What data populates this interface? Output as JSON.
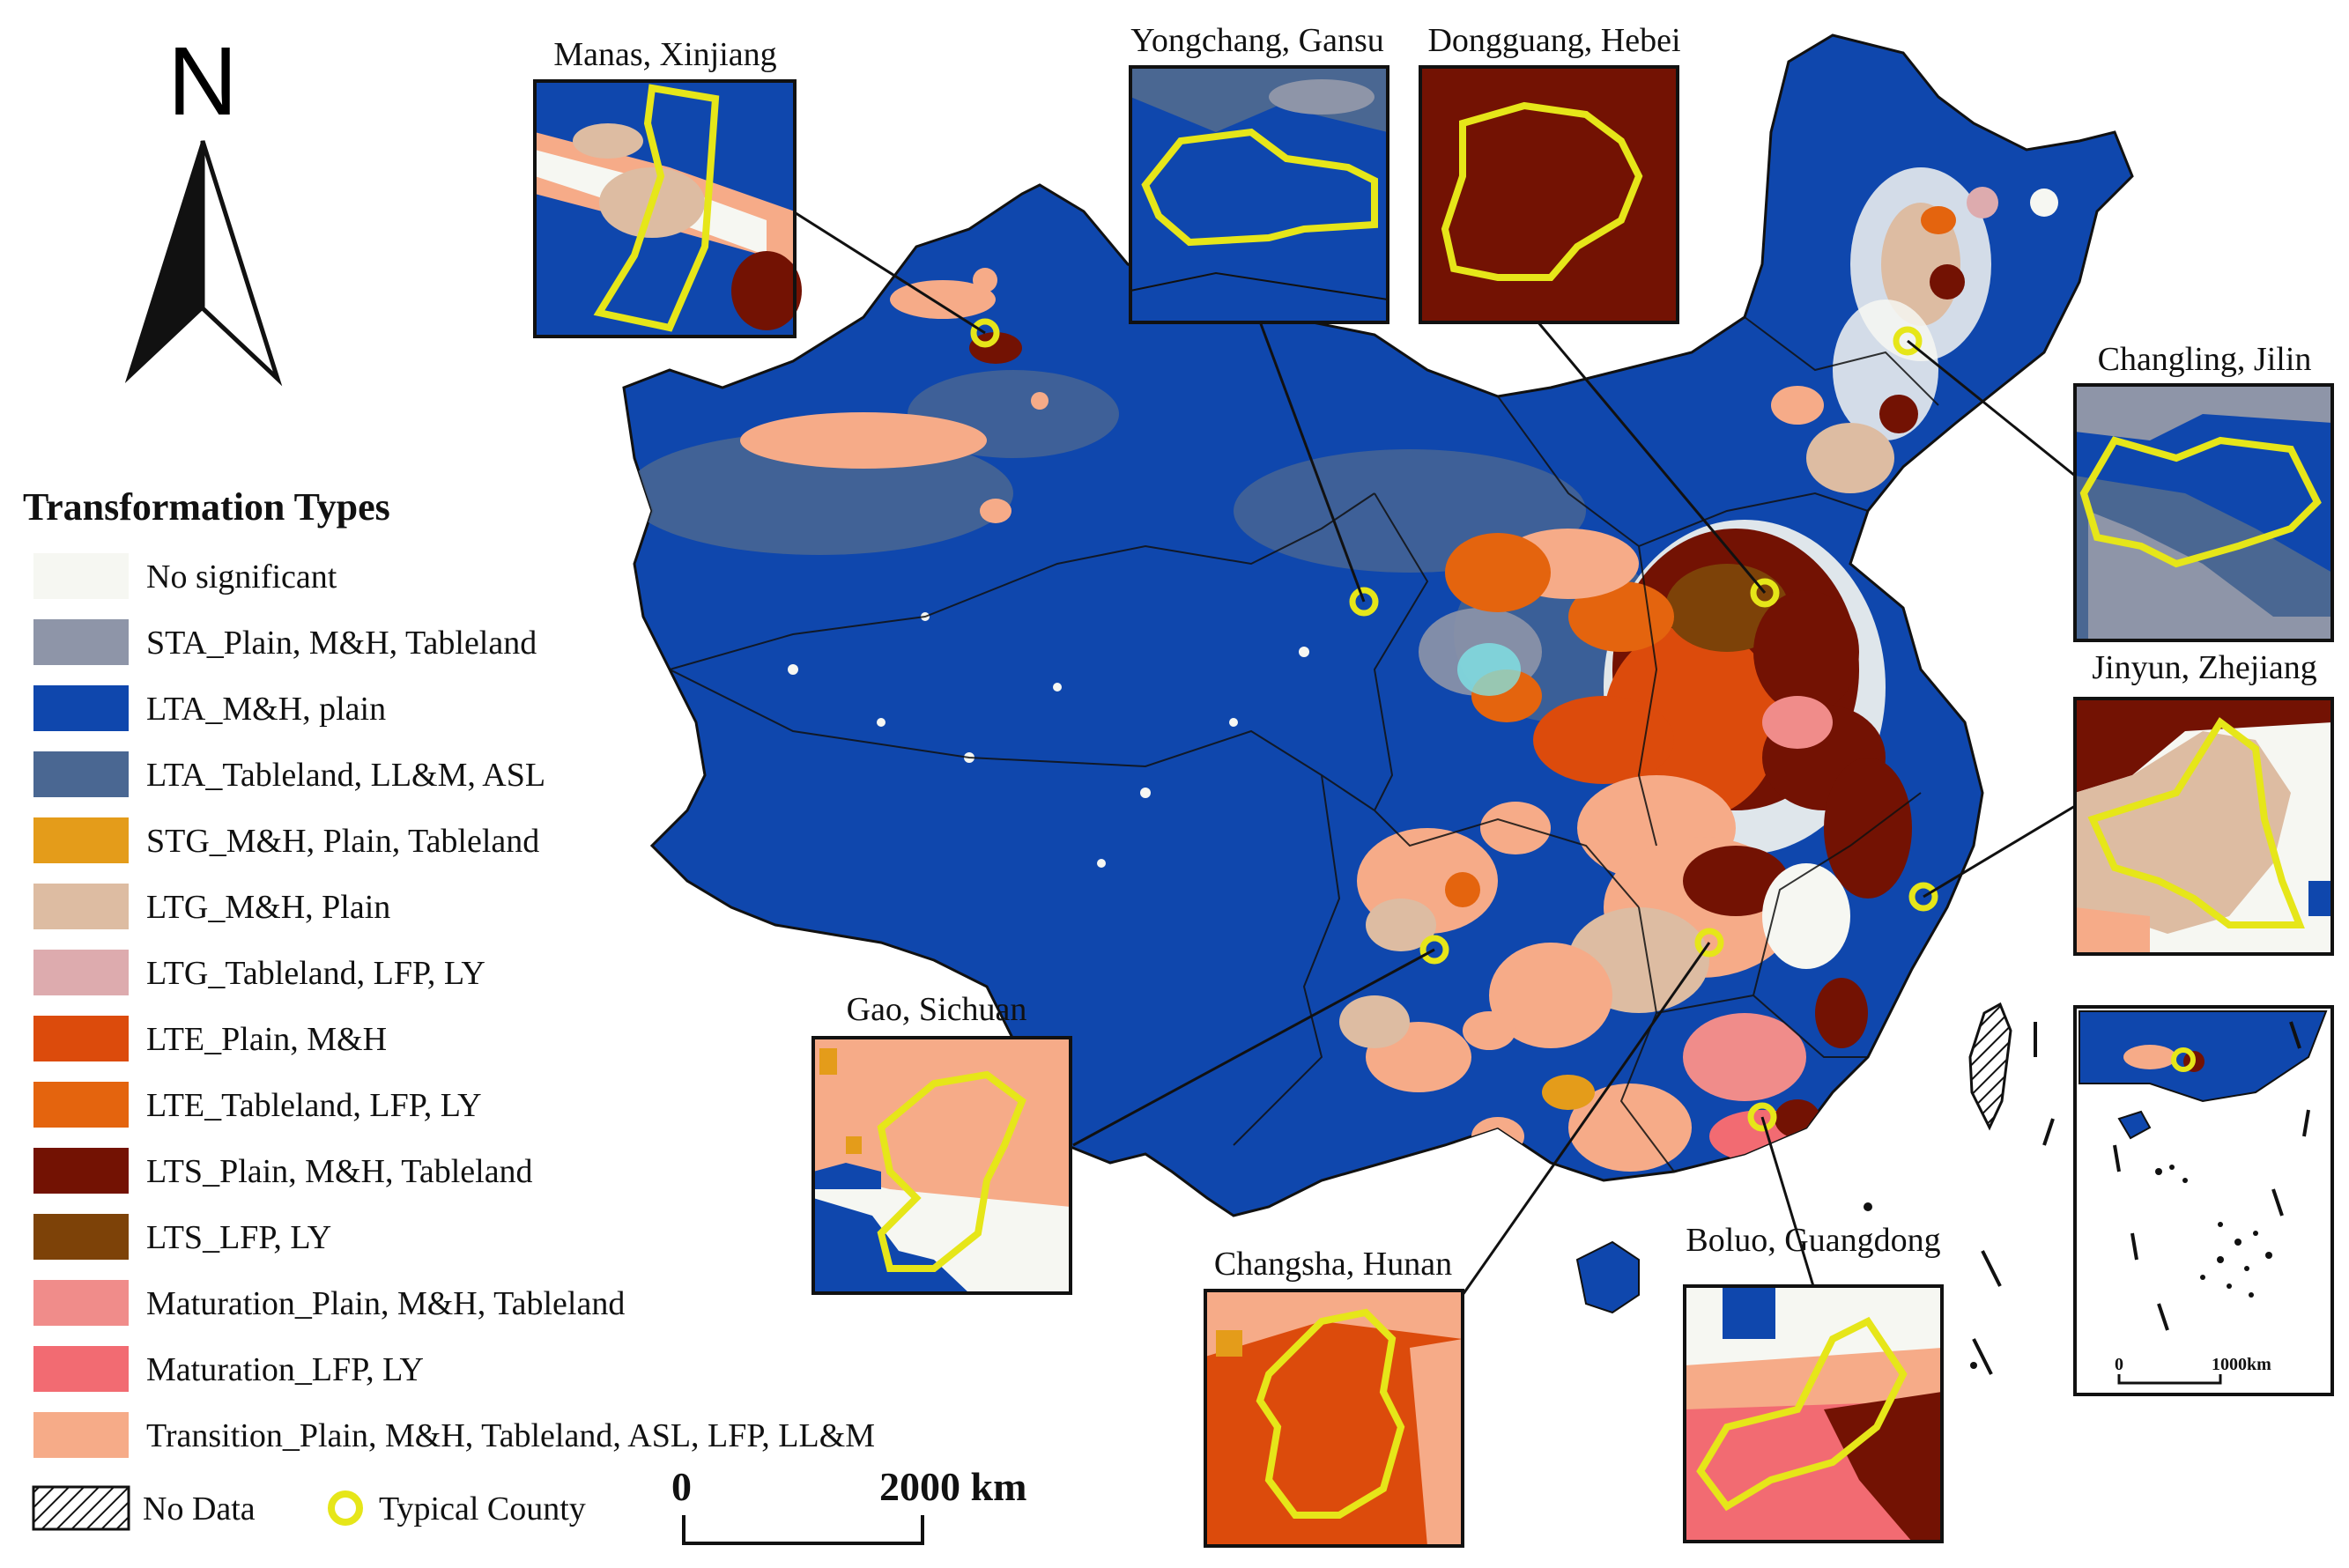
{
  "north_label": "N",
  "legend": {
    "title": "Transformation Types",
    "items": [
      {
        "label": "No significant",
        "color": "#f6f7f2"
      },
      {
        "label": "STA_Plain, M&H, Tableland",
        "color": "#8e95a8"
      },
      {
        "label": "LTA_M&H, plain",
        "color": "#0f47ad"
      },
      {
        "label": "LTA_Tableland, LL&M, ASL",
        "color": "#4a6792"
      },
      {
        "label": "STG_M&H, Plain, Tableland",
        "color": "#e49c1a"
      },
      {
        "label": "LTG_M&H, Plain",
        "color": "#ddbca2"
      },
      {
        "label": "LTG_Tableland, LFP, LY",
        "color": "#ddabae"
      },
      {
        "label": "LTE_Plain, M&H",
        "color": "#dc4b0c"
      },
      {
        "label": "LTE_Tableland, LFP, LY",
        "color": "#e4640e"
      },
      {
        "label": "LTS_Plain, M&H, Tableland",
        "color": "#731203"
      },
      {
        "label": "LTS_LFP, LY",
        "color": "#7d4208"
      },
      {
        "label": "Maturation_Plain, M&H, Tableland",
        "color": "#f08c8a"
      },
      {
        "label": "Maturation_LFP, LY",
        "color": "#f26b72"
      },
      {
        "label": "Transition_Plain, M&H, Tableland, ASL, LFP, LL&M",
        "color": "#f6ab88"
      }
    ],
    "no_data_label": "No Data",
    "typical_county_label": "Typical County",
    "typical_county_color": "#e6e619"
  },
  "scale_bar": {
    "start": "0",
    "end": "2000 km"
  },
  "mini_scale": {
    "start": "0",
    "end": "1000km"
  },
  "insets": [
    {
      "id": "manas",
      "title": "Manas, Xinjiang"
    },
    {
      "id": "yongchang",
      "title": "Yongchang, Gansu"
    },
    {
      "id": "dongguang",
      "title": "Dongguang, Hebei"
    },
    {
      "id": "changling",
      "title": "Changling, Jilin"
    },
    {
      "id": "jinyun",
      "title": "Jinyun, Zhejiang"
    },
    {
      "id": "gao",
      "title": "Gao, Sichuan"
    },
    {
      "id": "changsha",
      "title": "Changsha, Hunan"
    },
    {
      "id": "boluo",
      "title": "Boluo, Guangdong"
    }
  ]
}
